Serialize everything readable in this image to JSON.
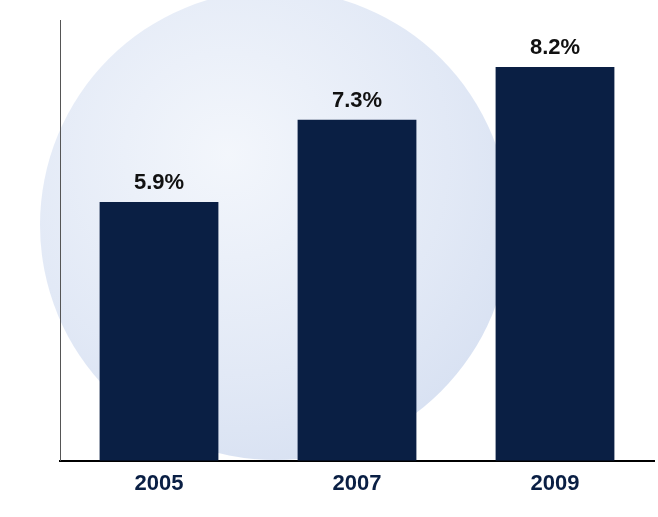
{
  "chart_data": {
    "type": "bar",
    "categories": [
      "2005",
      "2007",
      "2009"
    ],
    "values": [
      5.9,
      7.3,
      8.2
    ],
    "value_labels": [
      "5.9%",
      "7.3%",
      "8.2%"
    ],
    "data_labels": true,
    "color": "#0a1f44",
    "ylim": [
      1.5,
      9
    ],
    "tick_labels": "x",
    "grid": false
  }
}
